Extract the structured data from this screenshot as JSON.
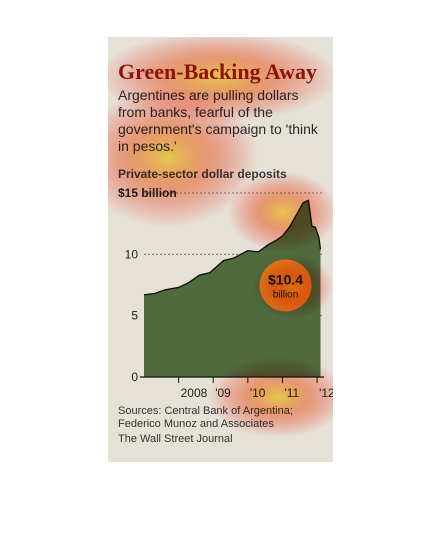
{
  "title": "Green-Backing Away",
  "subtitle": "Argentines are pulling dollars from banks, fearful of the government's campaign to 'think in pesos.'",
  "chart_data": {
    "type": "area",
    "title": "Private-sector dollar deposits",
    "ylabel": "",
    "xlabel": "",
    "ylim": [
      0,
      15
    ],
    "yticks": [
      {
        "value": 15,
        "label": "$15 billion"
      },
      {
        "value": 10,
        "label": "10"
      },
      {
        "value": 5,
        "label": "5"
      },
      {
        "value": 0,
        "label": "0"
      }
    ],
    "xticks": [
      {
        "value": 2008,
        "label": "2008"
      },
      {
        "value": 2009,
        "label": "'09"
      },
      {
        "value": 2010,
        "label": "'10"
      },
      {
        "value": 2011,
        "label": "'11"
      },
      {
        "value": 2012,
        "label": "'12"
      }
    ],
    "xlim": [
      2007.0,
      2012.2
    ],
    "grid": {
      "horizontal_dashed": true
    },
    "x": [
      2007.0,
      2007.3,
      2007.6,
      2008.0,
      2008.3,
      2008.6,
      2008.9,
      2009.1,
      2009.3,
      2009.6,
      2009.8,
      2010.0,
      2010.3,
      2010.6,
      2010.8,
      2011.0,
      2011.2,
      2011.4,
      2011.6,
      2011.75,
      2011.85,
      2011.95,
      2012.05,
      2012.1
    ],
    "y": [
      6.7,
      6.8,
      7.1,
      7.3,
      7.7,
      8.3,
      8.5,
      9.0,
      9.5,
      9.7,
      10.0,
      10.3,
      10.2,
      10.8,
      11.1,
      11.5,
      12.2,
      13.2,
      14.2,
      14.4,
      12.3,
      12.2,
      11.4,
      10.4
    ],
    "annotation": {
      "value_label": "$10.4",
      "unit_label": "billion",
      "value": 10.4
    },
    "colors": {
      "area": "#4f6a3d",
      "line": "#111111",
      "badge": "#d9801b",
      "background": "#e6e1d6"
    }
  },
  "sources": "Sources: Central Bank of Argentina; Federico Munoz and Associates",
  "credit": "The Wall Street Journal"
}
